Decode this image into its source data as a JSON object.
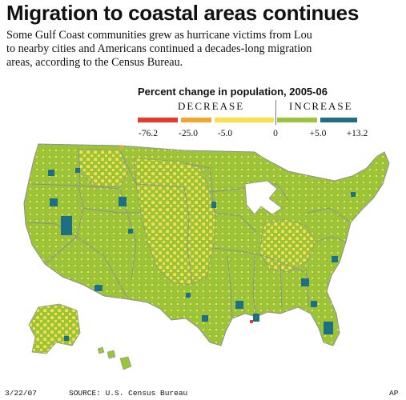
{
  "headline": "Migration to coastal areas continues",
  "intro_lines": [
    "Some Gulf Coast communities grew as hurricane victims from Lou",
    "to nearby cities and Americans continued a decades-long migration",
    "areas, according to the Census Bureau."
  ],
  "legend": {
    "title": "Percent change in population, 2005-06",
    "decrease_label": "DECREASE",
    "increase_label": "INCREASE",
    "ticks": [
      "-76.2",
      "-25.0",
      "-5.0",
      "0",
      "+5.0",
      "+13.2"
    ],
    "colors": [
      "#e8382a",
      "#f5a431",
      "#f7e04a",
      "#9cc43a",
      "#1f6f82"
    ]
  },
  "map": {
    "land_green": "#9cc43a",
    "land_yellow": "#f7e04a",
    "growth_teal": "#1f6f82",
    "border_gray": "#8a8f94"
  },
  "footer": {
    "date": "3/22/07",
    "source": "SOURCE: U.S. Census Bureau",
    "credit": "AP"
  }
}
